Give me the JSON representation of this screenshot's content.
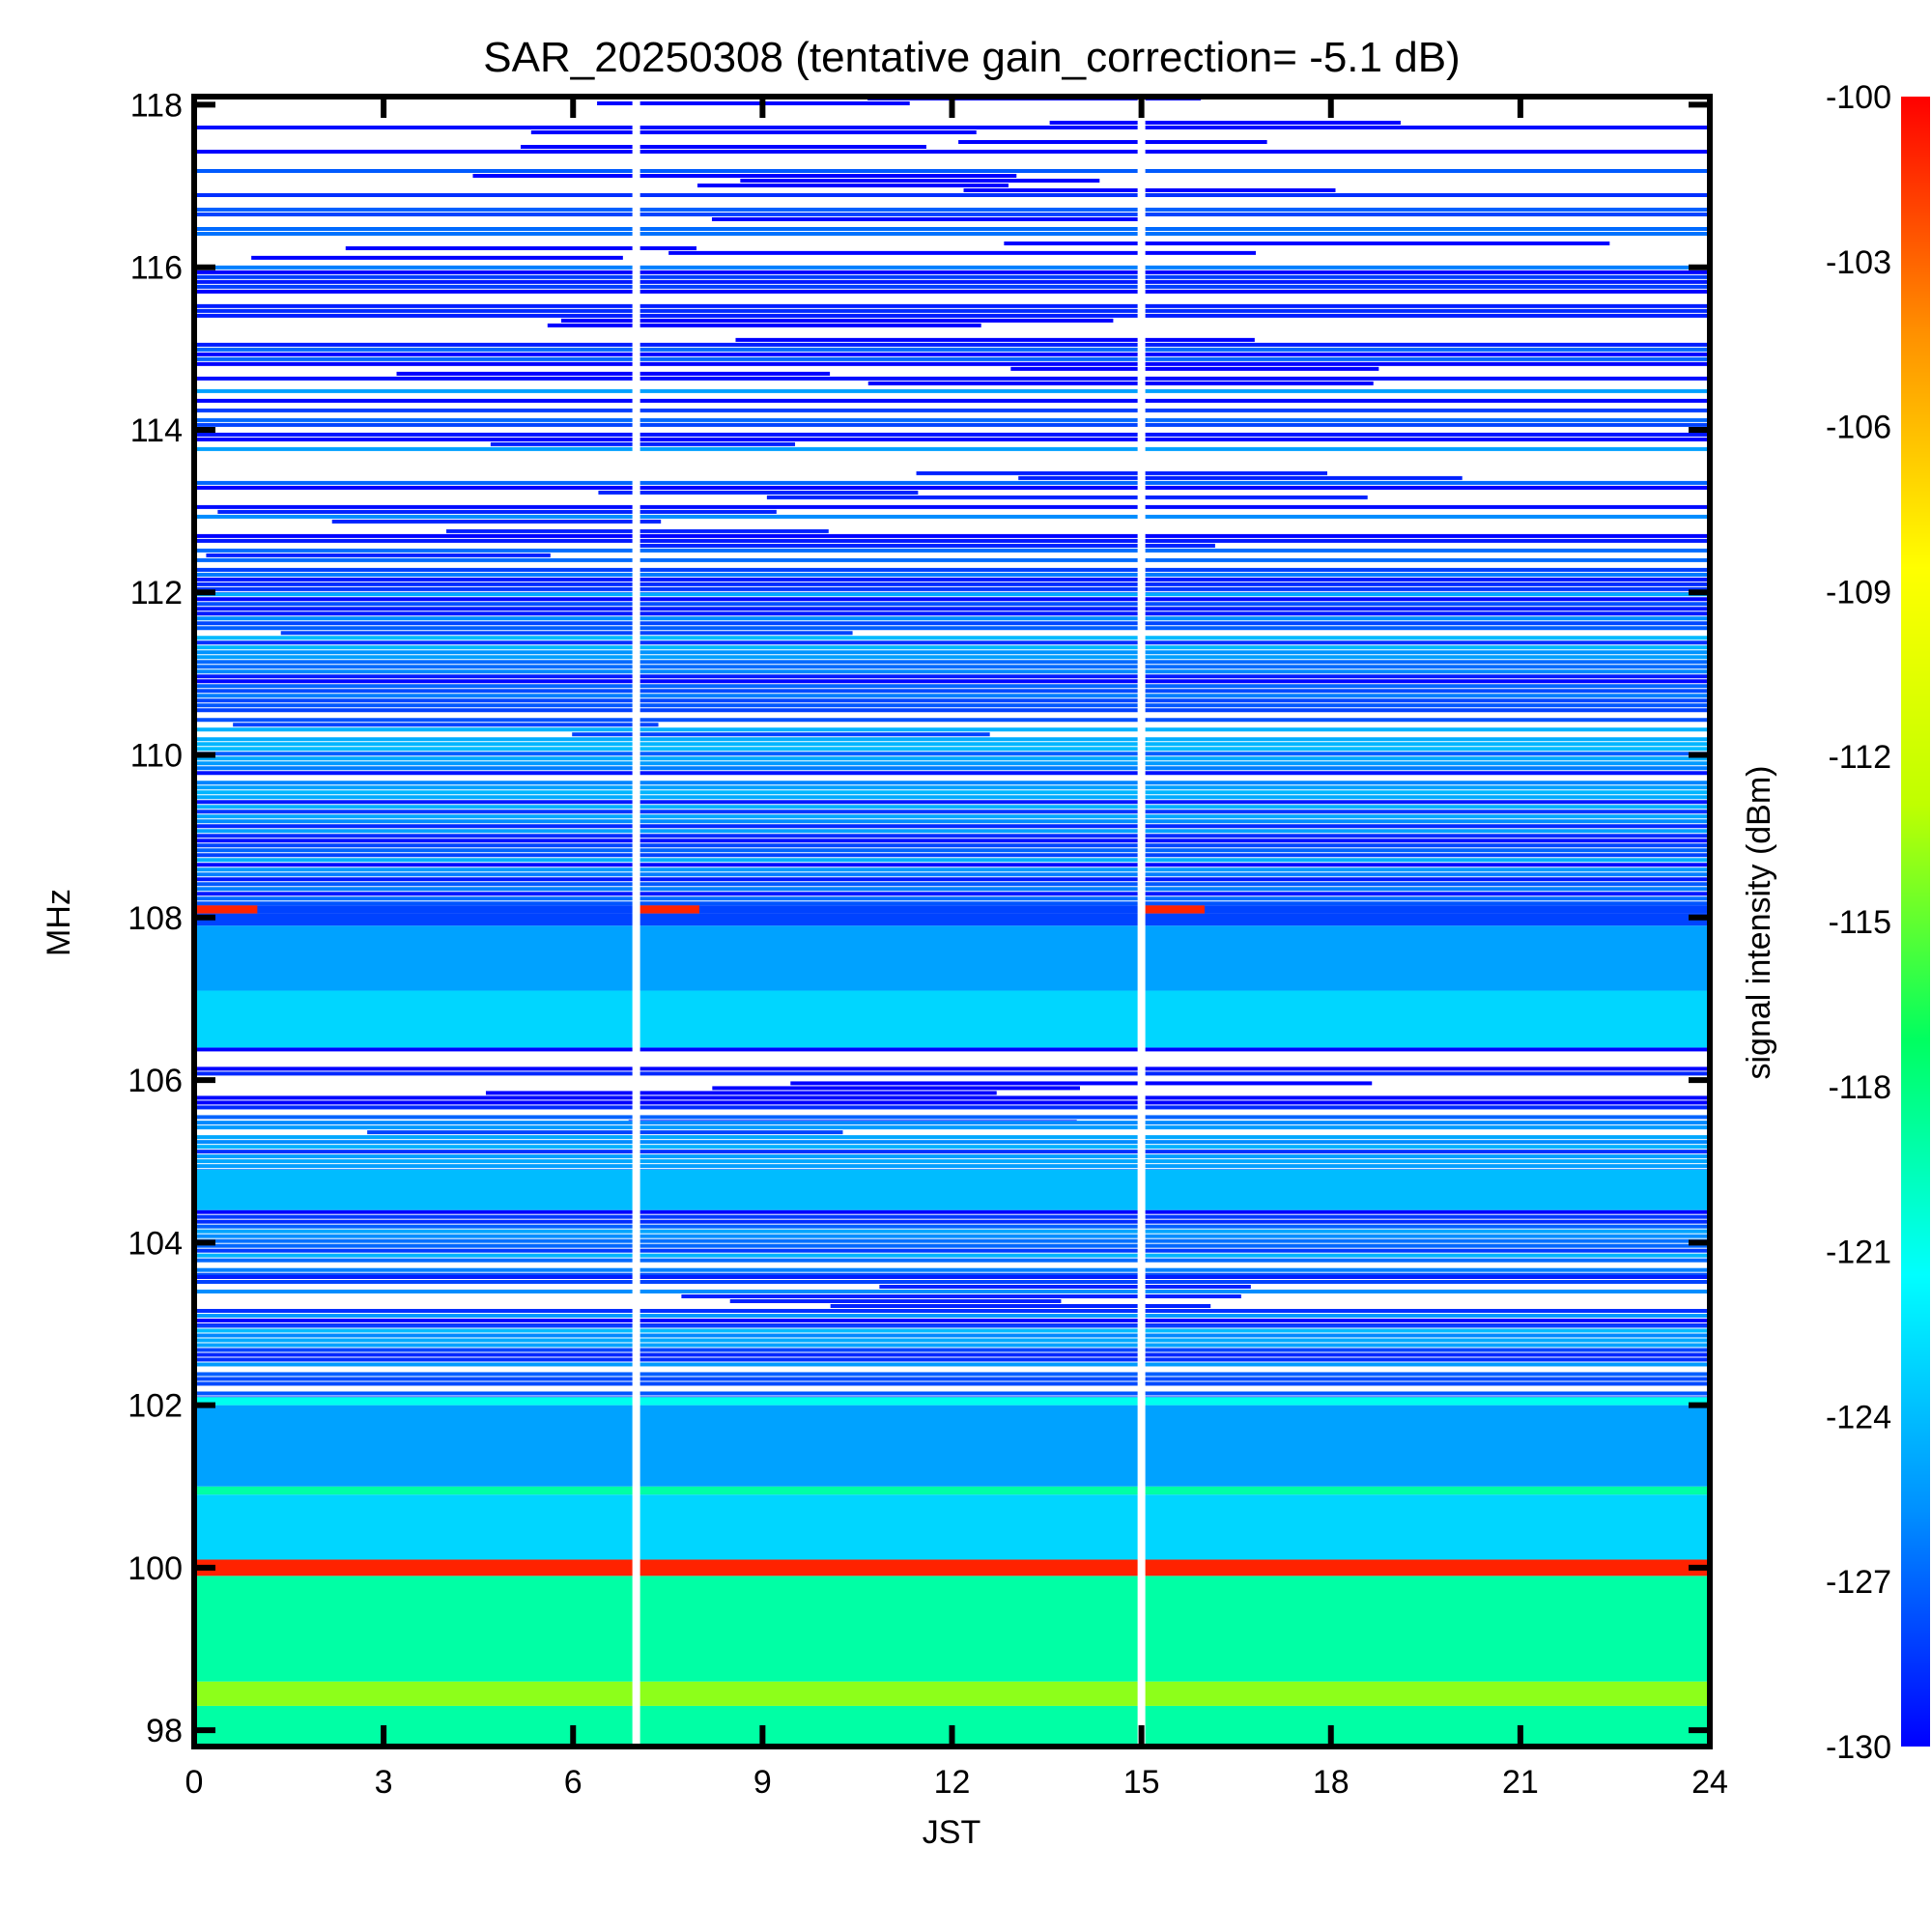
{
  "chart_data": {
    "type": "heatmap",
    "title": "SAR_20250308 (tentative gain_correction= -5.1 dB)",
    "xlabel": "JST",
    "ylabel": "MHz",
    "colorbar_label": "signal intensity (dBm)",
    "xlim": [
      0,
      24
    ],
    "ylim": [
      97.8,
      118.1
    ],
    "x_ticks": [
      0,
      3,
      6,
      9,
      12,
      15,
      18,
      21,
      24
    ],
    "y_ticks": [
      98,
      100,
      102,
      104,
      106,
      108,
      110,
      112,
      114,
      116,
      118
    ],
    "colorbar_range": [
      -130,
      -100
    ],
    "colorbar_ticks": [
      -100,
      -103,
      -106,
      -109,
      -112,
      -115,
      -118,
      -121,
      -124,
      -127,
      -130
    ],
    "colormap": [
      "#0000ff",
      "#0090ff",
      "#00ffff",
      "#00ff60",
      "#c0ff00",
      "#ffff00",
      "#ff9000",
      "#ff0000"
    ],
    "gap_columns_jst": [
      7.0,
      15.0
    ],
    "frequency_bands": [
      {
        "from": 97.8,
        "to": 98.3,
        "dbm": -119,
        "pattern": "solid"
      },
      {
        "from": 98.3,
        "to": 98.6,
        "dbm": -114,
        "pattern": "solid"
      },
      {
        "from": 98.6,
        "to": 99.9,
        "dbm": -119,
        "pattern": "solid"
      },
      {
        "from": 99.9,
        "to": 100.1,
        "dbm": -101,
        "pattern": "solid"
      },
      {
        "from": 100.1,
        "to": 100.9,
        "dbm": -123,
        "pattern": "solid"
      },
      {
        "from": 100.9,
        "to": 101.0,
        "dbm": -119,
        "pattern": "solid"
      },
      {
        "from": 101.0,
        "to": 102.0,
        "dbm": -125,
        "pattern": "solid"
      },
      {
        "from": 102.0,
        "to": 102.1,
        "dbm": -121,
        "pattern": "solid"
      },
      {
        "from": 102.1,
        "to": 103.0,
        "dbm": -128,
        "pattern": "noisy"
      },
      {
        "from": 103.0,
        "to": 103.6,
        "dbm": -129,
        "pattern": "sparse"
      },
      {
        "from": 103.6,
        "to": 104.4,
        "dbm": -128,
        "pattern": "noisy"
      },
      {
        "from": 104.4,
        "to": 104.9,
        "dbm": -124,
        "pattern": "solid"
      },
      {
        "from": 104.9,
        "to": 105.5,
        "dbm": -128,
        "pattern": "noisy"
      },
      {
        "from": 105.5,
        "to": 106.4,
        "dbm": -130,
        "pattern": "sparse"
      },
      {
        "from": 106.4,
        "to": 107.1,
        "dbm": -123,
        "pattern": "solid"
      },
      {
        "from": 107.1,
        "to": 107.9,
        "dbm": -125,
        "pattern": "solid"
      },
      {
        "from": 107.9,
        "to": 108.05,
        "dbm": -128,
        "pattern": "solid"
      },
      {
        "from": 108.05,
        "to": 108.15,
        "dbm": -101,
        "pattern": "partial"
      },
      {
        "from": 108.15,
        "to": 112.0,
        "dbm": -128,
        "pattern": "noisy"
      },
      {
        "from": 112.0,
        "to": 114.5,
        "dbm": -129,
        "pattern": "sparse"
      },
      {
        "from": 114.5,
        "to": 116.2,
        "dbm": -130,
        "pattern": "sparse"
      },
      {
        "from": 116.2,
        "to": 118.1,
        "dbm": -130,
        "pattern": "very-sparse"
      }
    ],
    "grid": false,
    "legend": "colorbar-right"
  }
}
